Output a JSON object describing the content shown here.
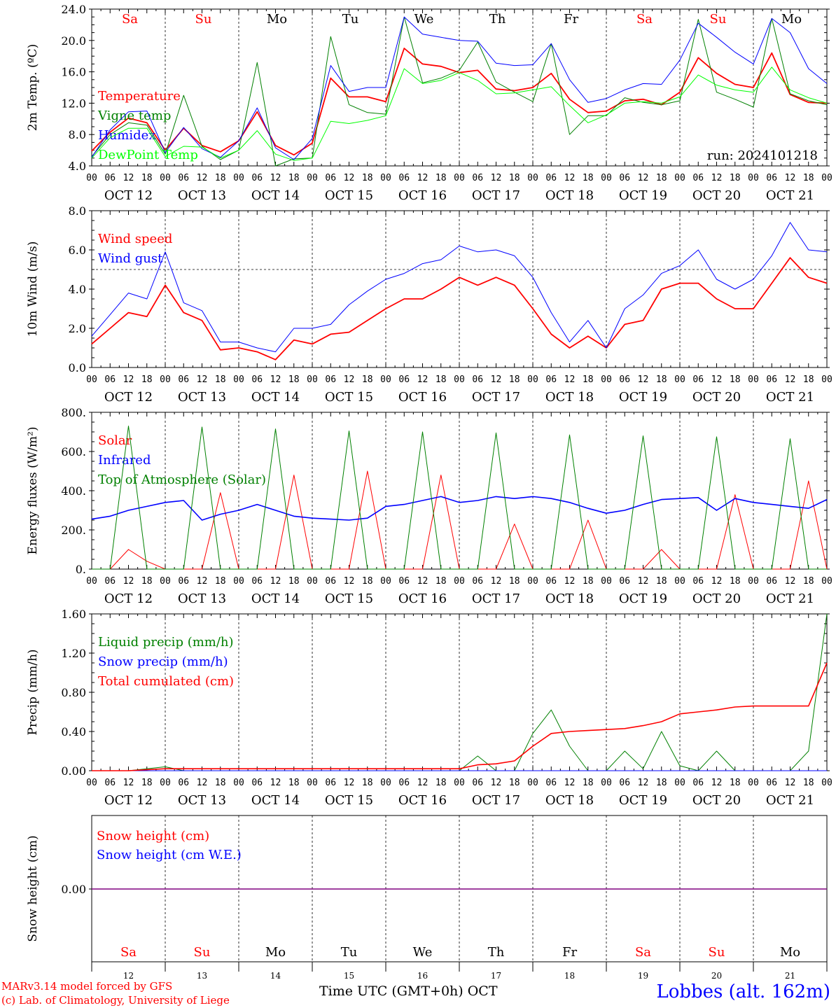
{
  "run_label": "run: 2024101218",
  "x_axis_title": "Time UTC (GMT+0h) OCT",
  "station": "Lobbes (alt. 162m)",
  "credits": [
    "MARv3.14 model forced by GFS",
    "(c) Lab. of Climatology, University of Liege"
  ],
  "hour_ticks": [
    "00",
    "06",
    "12",
    "18"
  ],
  "last_tick": "00",
  "day_labels": [
    "OCT 12",
    "OCT 13",
    "OCT 14",
    "OCT 15",
    "OCT 16",
    "OCT 17",
    "OCT 18",
    "OCT 19",
    "OCT 20",
    "OCT 21"
  ],
  "day_numbers": [
    "12",
    "13",
    "14",
    "15",
    "16",
    "17",
    "18",
    "19",
    "20",
    "21"
  ],
  "weekdays": [
    "Sa",
    "Su",
    "Mo",
    "Tu",
    "We",
    "Th",
    "Fr",
    "Sa",
    "Su",
    "Mo"
  ],
  "weekday_colors": [
    "#ff0000",
    "#ff0000",
    "#000000",
    "#000000",
    "#000000",
    "#000000",
    "#000000",
    "#ff0000",
    "#ff0000",
    "#000000"
  ],
  "chart_data": [
    {
      "type": "line",
      "ylabel": "2m Temp. (ºC)",
      "ylim": [
        4,
        24
      ],
      "yticks": [
        "4.0",
        "8.0",
        "12.0",
        "16.0",
        "20.0",
        "24.0"
      ],
      "x_hours": [
        0,
        6,
        12,
        18,
        24,
        30,
        36,
        42,
        48,
        54,
        60,
        66,
        72,
        78,
        84,
        90,
        96,
        102,
        108,
        114,
        120,
        126,
        132,
        138,
        144,
        150,
        156,
        162,
        168,
        174,
        180,
        186,
        192,
        198,
        204,
        210,
        216,
        222,
        228,
        234,
        240
      ],
      "series": [
        {
          "name": "Temperature",
          "color": "#ff0000",
          "width": 1.8,
          "values": [
            5.9,
            8.3,
            10.1,
            9.5,
            6.0,
            8.8,
            6.6,
            5.8,
            7.2,
            10.9,
            6.6,
            5.4,
            6.9,
            15.2,
            12.8,
            12.8,
            12.2,
            19.0,
            17.0,
            16.7,
            15.9,
            16.2,
            13.8,
            13.6,
            14.0,
            15.8,
            12.5,
            10.8,
            11.0,
            12.3,
            12.5,
            11.8,
            13.4,
            17.8,
            15.8,
            14.4,
            14.0,
            18.4,
            13.1,
            12.1,
            12.0
          ]
        },
        {
          "name": "Vigne temp",
          "color": "#008000",
          "width": 1.0,
          "values": [
            5.2,
            8.0,
            9.5,
            9.2,
            5.5,
            13.0,
            6.5,
            4.8,
            6.0,
            17.2,
            3.8,
            4.9,
            5.0,
            20.5,
            11.8,
            10.8,
            10.6,
            23.0,
            14.6,
            15.2,
            16.2,
            19.8,
            14.7,
            13.4,
            12.2,
            19.6,
            8.0,
            10.4,
            10.4,
            12.7,
            12.1,
            11.8,
            12.3,
            22.7,
            13.4,
            12.5,
            11.5,
            22.8,
            13.2,
            12.3,
            11.8
          ]
        },
        {
          "name": "Humidex",
          "color": "#0000ff",
          "width": 1.0,
          "values": [
            5.1,
            8.6,
            10.9,
            11.0,
            5.7,
            8.9,
            6.2,
            5.1,
            7.2,
            11.4,
            6.3,
            4.8,
            7.5,
            16.8,
            13.5,
            14.0,
            14.0,
            23.0,
            20.8,
            20.4,
            20.0,
            19.9,
            17.1,
            16.8,
            16.9,
            19.6,
            15.0,
            12.1,
            12.6,
            13.7,
            14.5,
            14.4,
            17.5,
            22.2,
            20.4,
            18.5,
            17.0,
            22.8,
            21.0,
            16.4,
            14.5
          ]
        },
        {
          "name": "DewPoint Temp",
          "color": "#00ff00",
          "width": 1.0,
          "values": [
            5.0,
            7.6,
            8.8,
            8.8,
            5.2,
            6.5,
            6.4,
            5.0,
            6.0,
            8.5,
            5.5,
            4.7,
            5.0,
            9.7,
            9.4,
            9.8,
            10.4,
            16.4,
            14.5,
            14.9,
            15.9,
            14.9,
            13.2,
            13.3,
            13.7,
            14.1,
            11.7,
            9.5,
            10.5,
            12.0,
            12.2,
            12.0,
            12.8,
            15.6,
            14.3,
            13.7,
            13.4,
            16.6,
            13.7,
            12.7,
            12.0
          ]
        }
      ]
    },
    {
      "type": "line",
      "ylabel": "10m Wind (m/s)",
      "ylim": [
        0,
        8
      ],
      "yticks": [
        "0.0",
        "2.0",
        "4.0",
        "6.0",
        "8.0"
      ],
      "reference_line": 5.0,
      "x_hours": [
        0,
        6,
        12,
        18,
        24,
        30,
        36,
        42,
        48,
        54,
        60,
        66,
        72,
        78,
        84,
        90,
        96,
        102,
        108,
        114,
        120,
        126,
        132,
        138,
        144,
        150,
        156,
        162,
        168,
        174,
        180,
        186,
        192,
        198,
        204,
        210,
        216,
        222,
        228,
        234,
        240
      ],
      "series": [
        {
          "name": "Wind speed",
          "color": "#ff0000",
          "width": 1.8,
          "values": [
            1.2,
            2.0,
            2.8,
            2.6,
            4.2,
            2.8,
            2.4,
            0.9,
            1.0,
            0.8,
            0.4,
            1.4,
            1.2,
            1.7,
            1.8,
            2.4,
            3.0,
            3.5,
            3.5,
            4.0,
            4.6,
            4.2,
            4.6,
            4.2,
            3.0,
            1.7,
            1.0,
            1.6,
            1.0,
            2.2,
            2.4,
            4.0,
            4.3,
            4.3,
            3.5,
            3.0,
            3.0,
            4.3,
            5.6,
            4.6,
            4.3
          ]
        },
        {
          "name": "Wind gust",
          "color": "#0000ff",
          "width": 1.0,
          "values": [
            1.6,
            2.7,
            3.8,
            3.5,
            5.9,
            3.3,
            2.9,
            1.3,
            1.3,
            1.0,
            0.8,
            2.0,
            2.0,
            2.2,
            3.2,
            3.9,
            4.5,
            4.8,
            5.3,
            5.5,
            6.2,
            5.9,
            6.0,
            5.7,
            4.6,
            2.8,
            1.3,
            2.4,
            1.0,
            3.0,
            3.7,
            4.8,
            5.2,
            6.0,
            4.5,
            4.0,
            4.5,
            5.7,
            7.4,
            6.0,
            5.9
          ]
        }
      ]
    },
    {
      "type": "line",
      "ylabel": "Energy fluxes (W/m²)",
      "ylim": [
        0,
        800
      ],
      "yticks": [
        "0.",
        "200.",
        "400.",
        "600.",
        "800."
      ],
      "x_hours": [
        0,
        6,
        12,
        18,
        24,
        30,
        36,
        42,
        48,
        54,
        60,
        66,
        72,
        78,
        84,
        90,
        96,
        102,
        108,
        114,
        120,
        126,
        132,
        138,
        144,
        150,
        156,
        162,
        168,
        174,
        180,
        186,
        192,
        198,
        204,
        210,
        216,
        222,
        228,
        234,
        240
      ],
      "series": [
        {
          "name": "Solar",
          "color": "#ff0000",
          "width": 1.0,
          "values": [
            0,
            0,
            100,
            40,
            0,
            0,
            0,
            390,
            0,
            0,
            0,
            480,
            0,
            0,
            0,
            500,
            0,
            0,
            0,
            480,
            0,
            0,
            0,
            230,
            0,
            0,
            0,
            250,
            0,
            0,
            0,
            100,
            0,
            0,
            0,
            380,
            0,
            0,
            0,
            450,
            0
          ]
        },
        {
          "name": "Infrared",
          "color": "#0000ff",
          "width": 1.6,
          "values": [
            255,
            270,
            300,
            320,
            340,
            350,
            250,
            280,
            300,
            330,
            300,
            270,
            260,
            255,
            250,
            260,
            320,
            330,
            350,
            370,
            340,
            350,
            370,
            360,
            370,
            360,
            340,
            310,
            285,
            300,
            330,
            355,
            360,
            365,
            300,
            360,
            340,
            330,
            320,
            310,
            355
          ]
        },
        {
          "name": "Top of Atmosphere (Solar)",
          "color": "#008000",
          "width": 1.0,
          "values": [
            0,
            0,
            730,
            0,
            0,
            0,
            725,
            0,
            0,
            0,
            715,
            0,
            0,
            0,
            705,
            0,
            0,
            0,
            700,
            0,
            0,
            0,
            695,
            0,
            0,
            0,
            685,
            0,
            0,
            0,
            680,
            0,
            0,
            0,
            675,
            0,
            0,
            0,
            665,
            0,
            0
          ]
        }
      ]
    },
    {
      "type": "line",
      "ylabel": "Precip (mm/h)",
      "ylim": [
        0,
        1.6
      ],
      "yticks": [
        "0.00",
        "0.40",
        "0.80",
        "1.20",
        "1.60"
      ],
      "x_hours": [
        0,
        6,
        12,
        18,
        24,
        30,
        36,
        42,
        48,
        54,
        60,
        66,
        72,
        78,
        84,
        90,
        96,
        102,
        108,
        114,
        120,
        126,
        132,
        138,
        144,
        150,
        156,
        162,
        168,
        174,
        180,
        186,
        192,
        198,
        204,
        210,
        216,
        222,
        228,
        234,
        240
      ],
      "series": [
        {
          "name": "Liquid precip (mm/h)",
          "color": "#008000",
          "width": 1.0,
          "values": [
            0,
            0,
            0,
            0.02,
            0.04,
            0,
            0,
            0,
            0,
            0,
            0,
            0,
            0,
            0,
            0,
            0,
            0,
            0,
            0,
            0,
            0,
            0.15,
            0,
            0,
            0.38,
            0.62,
            0.25,
            0,
            0,
            0.2,
            0.02,
            0.4,
            0.05,
            0,
            0.2,
            0,
            0,
            0,
            0,
            0.2,
            1.6
          ]
        },
        {
          "name": "Snow precip (mm/h)",
          "color": "#0000ff",
          "width": 1.0,
          "values": [
            0,
            0,
            0,
            0,
            0,
            0,
            0,
            0,
            0,
            0,
            0,
            0,
            0,
            0,
            0,
            0,
            0,
            0,
            0,
            0,
            0,
            0,
            0,
            0,
            0,
            0,
            0,
            0,
            0,
            0,
            0,
            0,
            0,
            0,
            0,
            0,
            0,
            0,
            0,
            0,
            0
          ]
        },
        {
          "name": "Total cumulated (cm)",
          "color": "#ff0000",
          "width": 1.6,
          "values": [
            0,
            0,
            0,
            0.01,
            0.02,
            0.02,
            0.02,
            0.02,
            0.02,
            0.02,
            0.02,
            0.02,
            0.02,
            0.02,
            0.02,
            0.02,
            0.02,
            0.02,
            0.02,
            0.02,
            0.02,
            0.06,
            0.07,
            0.1,
            0.25,
            0.38,
            0.4,
            0.41,
            0.42,
            0.43,
            0.46,
            0.5,
            0.58,
            0.6,
            0.62,
            0.65,
            0.66,
            0.66,
            0.66,
            0.66,
            1.1
          ]
        }
      ]
    },
    {
      "type": "line",
      "ylabel": "Snow height (cm)",
      "yticks": [
        "0.00"
      ],
      "series": [
        {
          "name": "Snow height (cm)",
          "color": "#ff0000",
          "values": [
            0,
            0
          ]
        },
        {
          "name": "Snow height (cm W.E.)",
          "color": "#0000ff",
          "values": [
            0,
            0
          ]
        }
      ]
    }
  ]
}
